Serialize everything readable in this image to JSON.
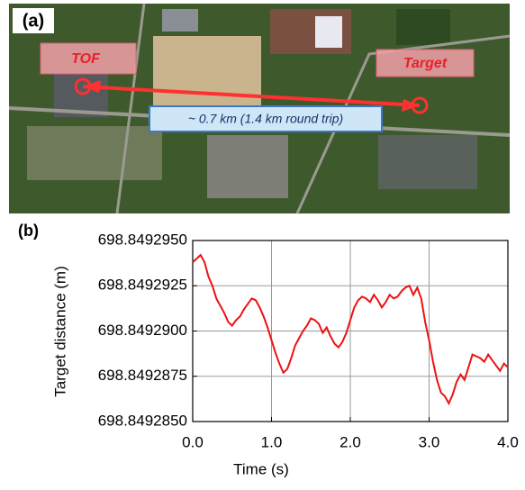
{
  "panel_a": {
    "panel_label": "(a)",
    "source_label": "TOF",
    "target_label": "Target",
    "distance_label": "~ 0.7 km (1.4 km round trip)"
  },
  "chart_data": {
    "type": "line",
    "panel_label": "(b)",
    "x_label": "Time (s)",
    "y_label": "Target distance (m)",
    "color": "#ee1111",
    "grid": true,
    "xlim": [
      0,
      4
    ],
    "ylim": [
      698.849285,
      698.849295
    ],
    "xticks": [
      {
        "value": 0,
        "label": "0.0"
      },
      {
        "value": 1,
        "label": "1.0"
      },
      {
        "value": 2,
        "label": "2.0"
      },
      {
        "value": 3,
        "label": "3.0"
      },
      {
        "value": 4,
        "label": "4.0"
      }
    ],
    "yticks": [
      {
        "value": 698.849285,
        "label": "698.8492850"
      },
      {
        "value": 698.8492875,
        "label": "698.8492875"
      },
      {
        "value": 698.84929,
        "label": "698.8492900"
      },
      {
        "value": 698.8492925,
        "label": "698.8492925"
      },
      {
        "value": 698.849295,
        "label": "698.8492950"
      }
    ],
    "x": [
      0,
      0.05,
      0.1,
      0.15,
      0.2,
      0.25,
      0.3,
      0.35,
      0.4,
      0.45,
      0.5,
      0.55,
      0.6,
      0.65,
      0.7,
      0.75,
      0.8,
      0.85,
      0.9,
      0.95,
      1,
      1.05,
      1.1,
      1.15,
      1.2,
      1.25,
      1.3,
      1.35,
      1.4,
      1.45,
      1.5,
      1.55,
      1.6,
      1.65,
      1.7,
      1.75,
      1.8,
      1.85,
      1.9,
      1.95,
      2,
      2.05,
      2.1,
      2.15,
      2.2,
      2.25,
      2.3,
      2.35,
      2.4,
      2.45,
      2.5,
      2.55,
      2.6,
      2.65,
      2.7,
      2.75,
      2.8,
      2.85,
      2.9,
      2.95,
      3,
      3.05,
      3.1,
      3.15,
      3.2,
      3.25,
      3.3,
      3.35,
      3.4,
      3.45,
      3.5,
      3.55,
      3.6,
      3.65,
      3.7,
      3.75,
      3.8,
      3.85,
      3.9,
      3.95,
      4
    ],
    "values": [
      698.8492938,
      698.849294,
      698.8492942,
      698.8492938,
      698.849293,
      698.8492925,
      698.8492918,
      698.8492914,
      698.849291,
      698.8492905,
      698.8492903,
      698.8492906,
      698.8492908,
      698.8492912,
      698.8492915,
      698.8492918,
      698.8492917,
      698.8492913,
      698.8492908,
      698.8492902,
      698.8492895,
      698.8492888,
      698.8492882,
      698.8492877,
      698.8492879,
      698.8492885,
      698.8492892,
      698.8492896,
      698.84929,
      698.8492903,
      698.8492907,
      698.8492906,
      698.8492904,
      698.8492899,
      698.8492902,
      698.8492897,
      698.8492893,
      698.8492891,
      698.8492894,
      698.8492899,
      698.8492906,
      698.8492913,
      698.8492917,
      698.8492919,
      698.8492918,
      698.8492916,
      698.849292,
      698.8492917,
      698.8492913,
      698.8492916,
      698.849292,
      698.8492918,
      698.8492919,
      698.8492922,
      698.8492924,
      698.8492925,
      698.849292,
      698.8492924,
      698.8492918,
      698.8492905,
      698.8492895,
      698.8492883,
      698.8492873,
      698.8492866,
      698.8492864,
      698.849286,
      698.8492865,
      698.8492872,
      698.8492876,
      698.8492873,
      698.849288,
      698.8492887,
      698.8492886,
      698.8492885,
      698.8492883,
      698.8492887,
      698.8492884,
      698.8492881,
      698.8492878,
      698.8492882,
      698.849288
    ]
  }
}
